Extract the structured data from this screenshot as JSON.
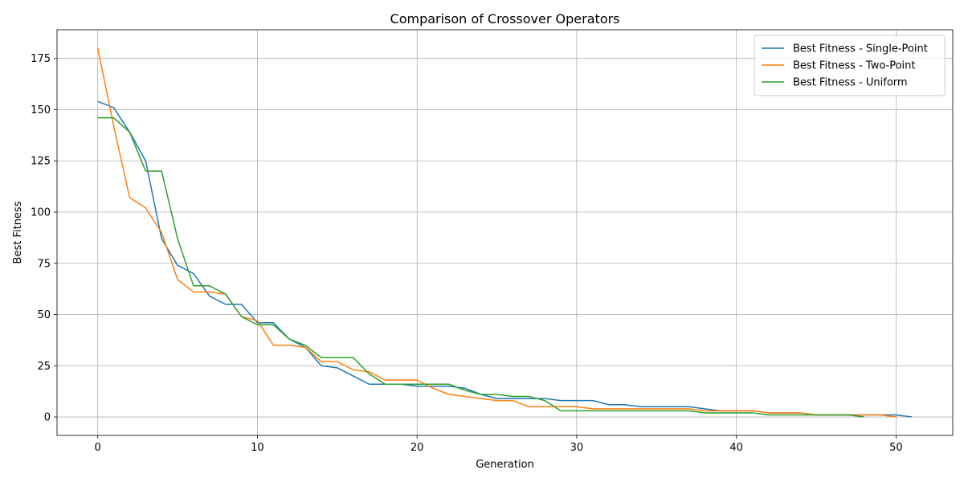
{
  "chart_data": {
    "type": "line",
    "title": "Comparison of Crossover Operators",
    "xlabel": "Generation",
    "ylabel": "Best Fitness",
    "xlim": [
      -2.55,
      53.55
    ],
    "ylim": [
      -9,
      189
    ],
    "xticks": [
      0,
      10,
      20,
      30,
      40,
      50
    ],
    "yticks": [
      0,
      25,
      50,
      75,
      100,
      125,
      150,
      175
    ],
    "grid": true,
    "legend": "top-right",
    "series": [
      {
        "name": "Best Fitness - Single-Point",
        "color": "#1f77b4",
        "x": [
          0,
          1,
          2,
          3,
          4,
          5,
          6,
          7,
          8,
          9,
          10,
          11,
          12,
          13,
          14,
          15,
          16,
          17,
          18,
          19,
          20,
          21,
          22,
          23,
          24,
          25,
          26,
          27,
          28,
          29,
          30,
          31,
          32,
          33,
          34,
          35,
          36,
          37,
          38,
          39,
          40,
          41,
          42,
          43,
          44,
          45,
          46,
          47,
          48,
          49,
          50,
          51
        ],
        "y": [
          154,
          151,
          139,
          125,
          87,
          74,
          70,
          59,
          55,
          55,
          46,
          46,
          38,
          34,
          25,
          24,
          20,
          16,
          16,
          16,
          15,
          15,
          15,
          14,
          11,
          9,
          9,
          9,
          9,
          8,
          8,
          8,
          6,
          6,
          5,
          5,
          5,
          5,
          4,
          3,
          3,
          3,
          2,
          2,
          2,
          1,
          1,
          1,
          1,
          1,
          1,
          0
        ]
      },
      {
        "name": "Best Fitness - Two-Point",
        "color": "#ff7f0e",
        "x": [
          0,
          1,
          2,
          3,
          4,
          5,
          6,
          7,
          8,
          9,
          10,
          11,
          12,
          13,
          14,
          15,
          16,
          17,
          18,
          19,
          20,
          21,
          22,
          23,
          24,
          25,
          26,
          27,
          28,
          29,
          30,
          31,
          32,
          33,
          34,
          35,
          36,
          37,
          38,
          39,
          40,
          41,
          42,
          43,
          44,
          45,
          46,
          47,
          48,
          49,
          50
        ],
        "y": [
          180,
          142,
          107,
          102,
          90,
          67,
          61,
          61,
          60,
          49,
          47,
          35,
          35,
          34,
          27,
          27,
          23,
          22,
          18,
          18,
          18,
          14,
          11,
          10,
          9,
          8,
          8,
          5,
          5,
          5,
          5,
          4,
          4,
          4,
          4,
          4,
          4,
          4,
          3,
          3,
          3,
          3,
          2,
          2,
          2,
          1,
          1,
          1,
          1,
          1,
          0
        ]
      },
      {
        "name": "Best Fitness - Uniform",
        "color": "#2ca02c",
        "x": [
          0,
          1,
          2,
          3,
          4,
          5,
          6,
          7,
          8,
          9,
          10,
          11,
          12,
          13,
          14,
          15,
          16,
          17,
          18,
          19,
          20,
          21,
          22,
          23,
          24,
          25,
          26,
          27,
          28,
          29,
          30,
          31,
          32,
          33,
          34,
          35,
          36,
          37,
          38,
          39,
          40,
          41,
          42,
          43,
          44,
          45,
          46,
          47,
          48
        ],
        "y": [
          146,
          146,
          139,
          120,
          120,
          87,
          64,
          64,
          60,
          49,
          45,
          45,
          38,
          35,
          29,
          29,
          29,
          21,
          16,
          16,
          16,
          16,
          16,
          13,
          11,
          11,
          10,
          10,
          8,
          3,
          3,
          3,
          3,
          3,
          3,
          3,
          3,
          3,
          2,
          2,
          2,
          2,
          1,
          1,
          1,
          1,
          1,
          1,
          0
        ]
      }
    ]
  }
}
